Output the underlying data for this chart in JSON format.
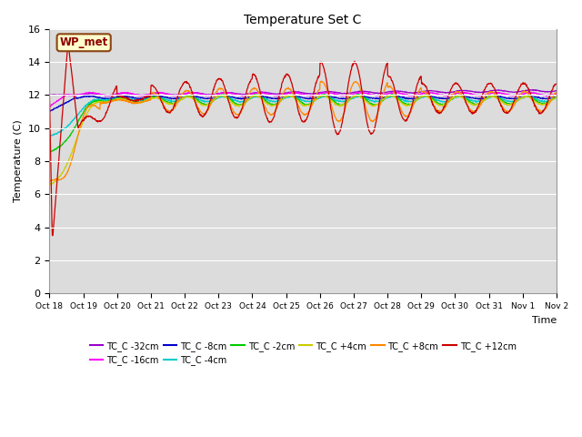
{
  "title": "Temperature Set C",
  "xlabel": "Time",
  "ylabel": "Temperature (C)",
  "ylim": [
    0,
    16
  ],
  "yticks": [
    0,
    2,
    4,
    6,
    8,
    10,
    12,
    14,
    16
  ],
  "background_color": "#dcdcdc",
  "annotation_text": "WP_met",
  "annotation_bg": "#ffffcc",
  "annotation_border": "#8b4513",
  "annotation_text_color": "#8b0000",
  "series": [
    {
      "label": "TC_C -32cm",
      "color": "#9900cc"
    },
    {
      "label": "TC_C -16cm",
      "color": "#ff00ff"
    },
    {
      "label": "TC_C -8cm",
      "color": "#0000cc"
    },
    {
      "label": "TC_C -4cm",
      "color": "#00cccc"
    },
    {
      "label": "TC_C -2cm",
      "color": "#00cc00"
    },
    {
      "label": "TC_C +4cm",
      "color": "#cccc00"
    },
    {
      "label": "TC_C +8cm",
      "color": "#ff8800"
    },
    {
      "label": "TC_C +12cm",
      "color": "#cc0000"
    }
  ],
  "xtick_labels": [
    "Oct 18",
    "Oct 19",
    "Oct 20",
    "Oct 21",
    "Oct 22",
    "Oct 23",
    "Oct 24",
    "Oct 25",
    "Oct 26",
    "Oct 27",
    "Oct 28",
    "Oct 29",
    "Oct 30",
    "Oct 31",
    "Nov 1",
    "Nov 2"
  ],
  "n_days": 15
}
